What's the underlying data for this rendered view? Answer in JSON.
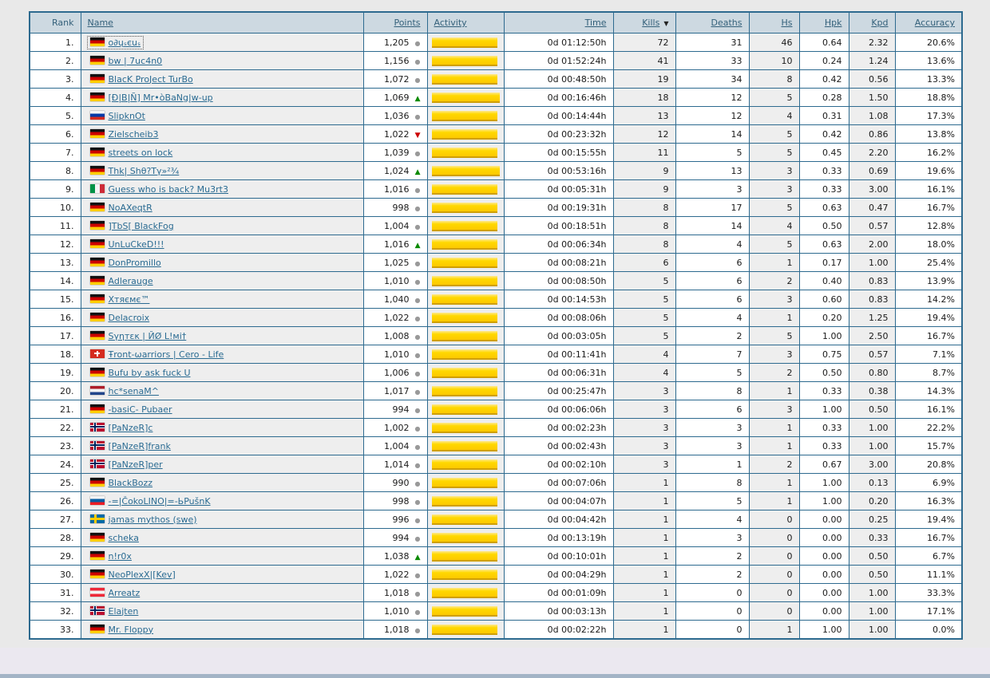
{
  "colors": {
    "grid_border": "#2d6a8f",
    "header_bg": "#cdd9e1",
    "header_text": "#33607a",
    "link": "#2a6b92",
    "shaded_column": "#eeeeee",
    "activity_bar": "#ffd800",
    "trend_up": "#0a8a00",
    "trend_down": "#cc0000",
    "trend_same": "#999999",
    "page_bg": "#e9e9e9",
    "footer_bg": "#ebe8f0"
  },
  "icons": {
    "sort_desc": "▼",
    "trend_up": "▲",
    "trend_down": "▼",
    "trend_same": "●"
  },
  "table": {
    "sort_column": "kills",
    "columns": [
      {
        "key": "rank",
        "label": "Rank",
        "align": "r",
        "sortable": false,
        "shaded": false
      },
      {
        "key": "name",
        "label": "Name",
        "align": "l",
        "sortable": true,
        "shaded": true
      },
      {
        "key": "points",
        "label": "Points",
        "align": "r",
        "sortable": true,
        "shaded": false
      },
      {
        "key": "activity",
        "label": "Activity",
        "align": "l",
        "sortable": true,
        "shaded": true
      },
      {
        "key": "time",
        "label": "Time",
        "align": "r",
        "sortable": true,
        "shaded": false
      },
      {
        "key": "kills",
        "label": "Kills",
        "align": "r",
        "sortable": true,
        "shaded": true
      },
      {
        "key": "deaths",
        "label": "Deaths",
        "align": "r",
        "sortable": true,
        "shaded": false
      },
      {
        "key": "hs",
        "label": "Hs",
        "align": "r",
        "sortable": true,
        "shaded": true
      },
      {
        "key": "hpk",
        "label": "Hpk",
        "align": "r",
        "sortable": true,
        "shaded": false
      },
      {
        "key": "kpd",
        "label": "Kpd",
        "align": "r",
        "sortable": true,
        "shaded": true
      },
      {
        "key": "accuracy",
        "label": "Accuracy",
        "align": "r",
        "sortable": true,
        "shaded": false
      }
    ],
    "rows": [
      {
        "rank": 1,
        "cc": "de",
        "name": "o∂ųₛєuₛ",
        "focused": true,
        "points": "1,205",
        "trend": "same",
        "activity": 97,
        "time": "0d 01:12:50h",
        "kills": "72",
        "deaths": "31",
        "hs": "46",
        "hpk": "0.64",
        "kpd": "2.32",
        "accuracy": "20.6%"
      },
      {
        "rank": 2,
        "cc": "de",
        "name": "bw | 7uc4n0",
        "points": "1,156",
        "trend": "same",
        "activity": 97,
        "time": "0d 01:52:24h",
        "kills": "41",
        "deaths": "33",
        "hs": "10",
        "hpk": "0.24",
        "kpd": "1.24",
        "accuracy": "13.6%"
      },
      {
        "rank": 3,
        "cc": "de",
        "name": "BlacK ProJect TurBo",
        "points": "1,072",
        "trend": "same",
        "activity": 97,
        "time": "0d 00:48:50h",
        "kills": "19",
        "deaths": "34",
        "hs": "8",
        "hpk": "0.42",
        "kpd": "0.56",
        "accuracy": "13.3%"
      },
      {
        "rank": 4,
        "cc": "de",
        "name": "[Đ|B|Ñ] Mr•òBaNg|w-up",
        "points": "1,069",
        "trend": "up",
        "activity": 100,
        "time": "0d 00:16:46h",
        "kills": "18",
        "deaths": "12",
        "hs": "5",
        "hpk": "0.28",
        "kpd": "1.50",
        "accuracy": "18.8%"
      },
      {
        "rank": 5,
        "cc": "ru",
        "name": "SlipknOt",
        "points": "1,036",
        "trend": "same",
        "activity": 97,
        "time": "0d 00:14:44h",
        "kills": "13",
        "deaths": "12",
        "hs": "4",
        "hpk": "0.31",
        "kpd": "1.08",
        "accuracy": "17.3%"
      },
      {
        "rank": 6,
        "cc": "de",
        "name": "Zielscheib3",
        "points": "1,022",
        "trend": "down",
        "activity": 97,
        "time": "0d 00:23:32h",
        "kills": "12",
        "deaths": "14",
        "hs": "5",
        "hpk": "0.42",
        "kpd": "0.86",
        "accuracy": "13.8%"
      },
      {
        "rank": 7,
        "cc": "de",
        "name": "streets on lock",
        "points": "1,039",
        "trend": "same",
        "activity": 97,
        "time": "0d 00:15:55h",
        "kills": "11",
        "deaths": "5",
        "hs": "5",
        "hpk": "0.45",
        "kpd": "2.20",
        "accuracy": "16.2%"
      },
      {
        "rank": 8,
        "cc": "de",
        "name": "Thk| Shθ?Tγ»²¾",
        "points": "1,024",
        "trend": "up",
        "activity": 100,
        "time": "0d 00:53:16h",
        "kills": "9",
        "deaths": "13",
        "hs": "3",
        "hpk": "0.33",
        "kpd": "0.69",
        "accuracy": "19.6%"
      },
      {
        "rank": 9,
        "cc": "it",
        "name": "Guess who is back? Mu3rt3",
        "points": "1,016",
        "trend": "same",
        "activity": 97,
        "time": "0d 00:05:31h",
        "kills": "9",
        "deaths": "3",
        "hs": "3",
        "hpk": "0.33",
        "kpd": "3.00",
        "accuracy": "16.1%"
      },
      {
        "rank": 10,
        "cc": "de",
        "name": "NoAXeqtR",
        "points": "998",
        "trend": "same",
        "activity": 97,
        "time": "0d 00:19:31h",
        "kills": "8",
        "deaths": "17",
        "hs": "5",
        "hpk": "0.63",
        "kpd": "0.47",
        "accuracy": "16.7%"
      },
      {
        "rank": 11,
        "cc": "de",
        "name": "]TbS[ BlackFog",
        "points": "1,004",
        "trend": "same",
        "activity": 97,
        "time": "0d 00:18:51h",
        "kills": "8",
        "deaths": "14",
        "hs": "4",
        "hpk": "0.50",
        "kpd": "0.57",
        "accuracy": "12.8%"
      },
      {
        "rank": 12,
        "cc": "de",
        "name": "UnLuCkeD!!!",
        "points": "1,016",
        "trend": "up",
        "activity": 97,
        "time": "0d 00:06:34h",
        "kills": "8",
        "deaths": "4",
        "hs": "5",
        "hpk": "0.63",
        "kpd": "2.00",
        "accuracy": "18.0%"
      },
      {
        "rank": 13,
        "cc": "de",
        "name": "DonPromillo",
        "points": "1,025",
        "trend": "same",
        "activity": 97,
        "time": "0d 00:08:21h",
        "kills": "6",
        "deaths": "6",
        "hs": "1",
        "hpk": "0.17",
        "kpd": "1.00",
        "accuracy": "25.4%"
      },
      {
        "rank": 14,
        "cc": "de",
        "name": "Adlerauge",
        "points": "1,010",
        "trend": "same",
        "activity": 97,
        "time": "0d 00:08:50h",
        "kills": "5",
        "deaths": "6",
        "hs": "2",
        "hpk": "0.40",
        "kpd": "0.83",
        "accuracy": "13.9%"
      },
      {
        "rank": 15,
        "cc": "de",
        "name": "Χтяємє™",
        "points": "1,040",
        "trend": "same",
        "activity": 97,
        "time": "0d 00:14:53h",
        "kills": "5",
        "deaths": "6",
        "hs": "3",
        "hpk": "0.60",
        "kpd": "0.83",
        "accuracy": "14.2%"
      },
      {
        "rank": 16,
        "cc": "de",
        "name": "Delacroix",
        "points": "1,022",
        "trend": "same",
        "activity": 97,
        "time": "0d 00:08:06h",
        "kills": "5",
        "deaths": "4",
        "hs": "1",
        "hpk": "0.20",
        "kpd": "1.25",
        "accuracy": "19.4%"
      },
      {
        "rank": 17,
        "cc": "de",
        "name": "Sγηтεκ | ЙØ L!мi†",
        "points": "1,008",
        "trend": "same",
        "activity": 97,
        "time": "0d 00:03:05h",
        "kills": "5",
        "deaths": "2",
        "hs": "5",
        "hpk": "1.00",
        "kpd": "2.50",
        "accuracy": "16.7%"
      },
      {
        "rank": 18,
        "cc": "ch",
        "name": "Ŧront-ωarriors | Cero - Life",
        "points": "1,010",
        "trend": "same",
        "activity": 97,
        "time": "0d 00:11:41h",
        "kills": "4",
        "deaths": "7",
        "hs": "3",
        "hpk": "0.75",
        "kpd": "0.57",
        "accuracy": "7.1%"
      },
      {
        "rank": 19,
        "cc": "de",
        "name": "Bufu by ask fuck U",
        "points": "1,006",
        "trend": "same",
        "activity": 97,
        "time": "0d 00:06:31h",
        "kills": "4",
        "deaths": "5",
        "hs": "2",
        "hpk": "0.50",
        "kpd": "0.80",
        "accuracy": "8.7%"
      },
      {
        "rank": 20,
        "cc": "nl",
        "name": "hc*senaM^",
        "points": "1,017",
        "trend": "same",
        "activity": 97,
        "time": "0d 00:25:47h",
        "kills": "3",
        "deaths": "8",
        "hs": "1",
        "hpk": "0.33",
        "kpd": "0.38",
        "accuracy": "14.3%"
      },
      {
        "rank": 21,
        "cc": "de",
        "name": "-basiC- Pubaer",
        "points": "994",
        "trend": "same",
        "activity": 97,
        "time": "0d 00:06:06h",
        "kills": "3",
        "deaths": "6",
        "hs": "3",
        "hpk": "1.00",
        "kpd": "0.50",
        "accuracy": "16.1%"
      },
      {
        "rank": 22,
        "cc": "no",
        "name": "[PaNzeR]c",
        "points": "1,002",
        "trend": "same",
        "activity": 97,
        "time": "0d 00:02:23h",
        "kills": "3",
        "deaths": "3",
        "hs": "1",
        "hpk": "0.33",
        "kpd": "1.00",
        "accuracy": "22.2%"
      },
      {
        "rank": 23,
        "cc": "no",
        "name": "[PaNzeR]frank",
        "points": "1,004",
        "trend": "same",
        "activity": 97,
        "time": "0d 00:02:43h",
        "kills": "3",
        "deaths": "3",
        "hs": "1",
        "hpk": "0.33",
        "kpd": "1.00",
        "accuracy": "15.7%"
      },
      {
        "rank": 24,
        "cc": "no",
        "name": "[PaNzeR]per",
        "points": "1,014",
        "trend": "same",
        "activity": 97,
        "time": "0d 00:02:10h",
        "kills": "3",
        "deaths": "1",
        "hs": "2",
        "hpk": "0.67",
        "kpd": "3.00",
        "accuracy": "20.8%"
      },
      {
        "rank": 25,
        "cc": "de",
        "name": "BlackBozz",
        "points": "990",
        "trend": "same",
        "activity": 97,
        "time": "0d 00:07:06h",
        "kills": "1",
        "deaths": "8",
        "hs": "1",
        "hpk": "1.00",
        "kpd": "0.13",
        "accuracy": "6.9%"
      },
      {
        "rank": 26,
        "cc": "si",
        "name": "-=|ČokoLINO|=-ЬPušnK",
        "points": "998",
        "trend": "same",
        "activity": 97,
        "time": "0d 00:04:07h",
        "kills": "1",
        "deaths": "5",
        "hs": "1",
        "hpk": "1.00",
        "kpd": "0.20",
        "accuracy": "16.3%"
      },
      {
        "rank": 27,
        "cc": "se",
        "name": "jamas mythos (swe)",
        "points": "996",
        "trend": "same",
        "activity": 97,
        "time": "0d 00:04:42h",
        "kills": "1",
        "deaths": "4",
        "hs": "0",
        "hpk": "0.00",
        "kpd": "0.25",
        "accuracy": "19.4%"
      },
      {
        "rank": 28,
        "cc": "de",
        "name": "scheka",
        "points": "994",
        "trend": "same",
        "activity": 97,
        "time": "0d 00:13:19h",
        "kills": "1",
        "deaths": "3",
        "hs": "0",
        "hpk": "0.00",
        "kpd": "0.33",
        "accuracy": "16.7%"
      },
      {
        "rank": 29,
        "cc": "de",
        "name": "n!r0x",
        "points": "1,038",
        "trend": "up",
        "activity": 97,
        "time": "0d 00:10:01h",
        "kills": "1",
        "deaths": "2",
        "hs": "0",
        "hpk": "0.00",
        "kpd": "0.50",
        "accuracy": "6.7%"
      },
      {
        "rank": 30,
        "cc": "de",
        "name": "NeoPlexX|[Kev]",
        "points": "1,022",
        "trend": "same",
        "activity": 97,
        "time": "0d 00:04:29h",
        "kills": "1",
        "deaths": "2",
        "hs": "0",
        "hpk": "0.00",
        "kpd": "0.50",
        "accuracy": "11.1%"
      },
      {
        "rank": 31,
        "cc": "at",
        "name": "Arreatz",
        "points": "1,018",
        "trend": "same",
        "activity": 97,
        "time": "0d 00:01:09h",
        "kills": "1",
        "deaths": "0",
        "hs": "0",
        "hpk": "0.00",
        "kpd": "1.00",
        "accuracy": "33.3%"
      },
      {
        "rank": 32,
        "cc": "no",
        "name": "Elajten",
        "points": "1,010",
        "trend": "same",
        "activity": 97,
        "time": "0d 00:03:13h",
        "kills": "1",
        "deaths": "0",
        "hs": "0",
        "hpk": "0.00",
        "kpd": "1.00",
        "accuracy": "17.1%"
      },
      {
        "rank": 33,
        "cc": "de",
        "name": "Mr. Floppy",
        "points": "1,018",
        "trend": "same",
        "activity": 97,
        "time": "0d 00:02:22h",
        "kills": "1",
        "deaths": "0",
        "hs": "1",
        "hpk": "1.00",
        "kpd": "1.00",
        "accuracy": "0.0%"
      }
    ]
  }
}
